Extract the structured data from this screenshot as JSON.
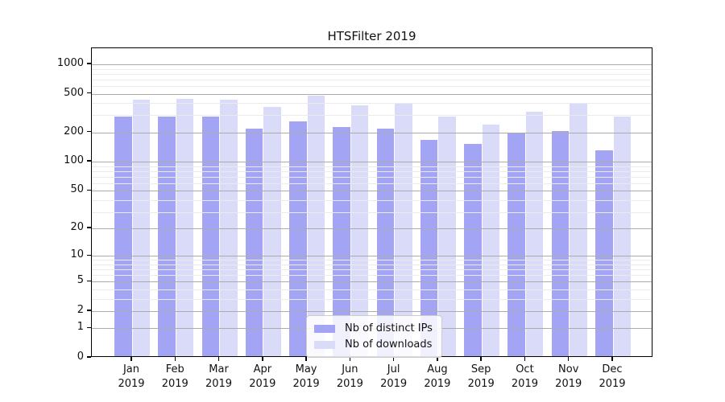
{
  "chart_data": {
    "type": "bar",
    "title": "HTSFilter 2019",
    "categories": [
      "Jan 2019",
      "Feb 2019",
      "Mar 2019",
      "Apr 2019",
      "May 2019",
      "Jun 2019",
      "Jul 2019",
      "Aug 2019",
      "Sep 2019",
      "Oct 2019",
      "Nov 2019",
      "Dec 2019"
    ],
    "series": [
      {
        "name": "Nb of distinct IPs",
        "color": "#a4a4f4",
        "values": [
          278,
          278,
          281,
          210,
          251,
          218,
          210,
          161,
          146,
          191,
          201,
          127
        ]
      },
      {
        "name": "Nb of downloads",
        "color": "#dadaf9",
        "values": [
          422,
          430,
          417,
          354,
          456,
          364,
          390,
          280,
          232,
          313,
          390,
          283
        ]
      }
    ],
    "xlabel": "",
    "ylabel": "",
    "yscale": "log1p",
    "ylim": [
      0,
      1460
    ],
    "yticks": [
      0,
      1,
      2,
      5,
      10,
      20,
      50,
      100,
      200,
      500,
      1000
    ],
    "yticks_minor": [
      3,
      4,
      6,
      7,
      8,
      9,
      30,
      40,
      60,
      70,
      80,
      90,
      300,
      400,
      600,
      700,
      800,
      900
    ],
    "grid": "horizontal, drawn above bars",
    "legend_position": "lower center"
  }
}
